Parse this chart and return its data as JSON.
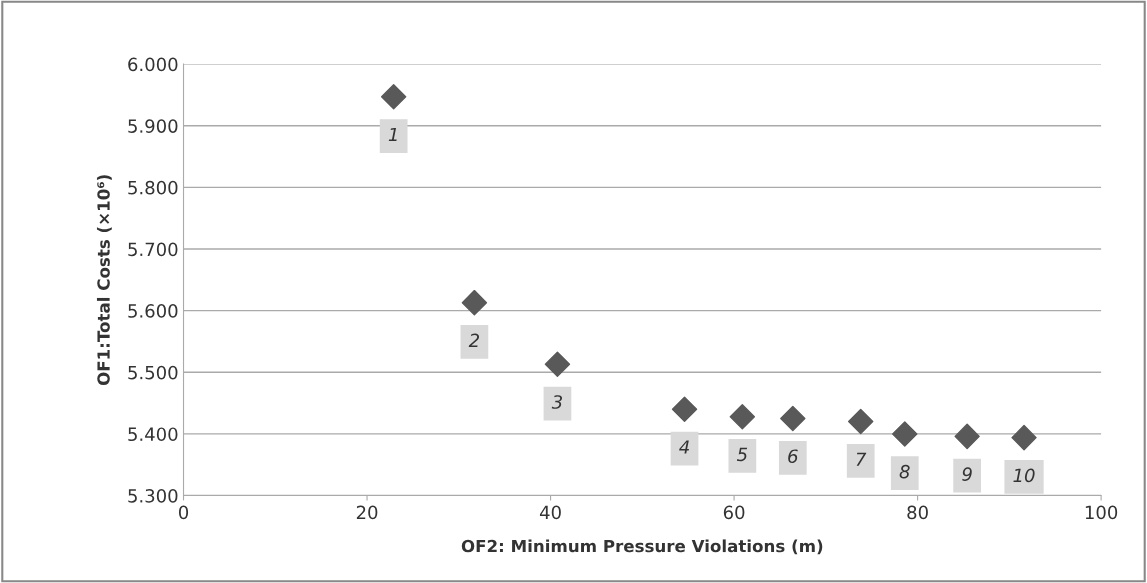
{
  "chart_data": {
    "type": "scatter",
    "xlabel": "OF2: Minimum Pressure Violations (m)",
    "ylabel": "OF1:Total Costs (×10⁶)",
    "x": [
      22.9,
      31.7,
      40.75,
      54.6,
      60.9,
      66.4,
      73.8,
      78.6,
      85.4,
      91.6
    ],
    "series": [
      {
        "color": "#595959",
        "values": [
          5.947,
          5.613,
          5.513,
          5.44,
          5.428,
          5.425,
          5.42,
          5.4,
          5.396,
          5.394
        ]
      }
    ],
    "marker": "diamond",
    "grid": "y",
    "xlim": [
      0,
      100
    ],
    "xticks": [
      0,
      20,
      40,
      60,
      80,
      100
    ],
    "ylim": [
      5.3,
      6.0
    ],
    "yticks": [
      {
        "value": 5.3,
        "label": "5.300"
      },
      {
        "value": 5.4,
        "label": "5.400"
      },
      {
        "value": 5.5,
        "label": "5.500"
      },
      {
        "value": 5.6,
        "label": "5.600"
      },
      {
        "value": 5.7,
        "label": "5.700"
      },
      {
        "value": 5.8,
        "label": "5.800"
      },
      {
        "value": 5.9,
        "label": "5.900"
      },
      {
        "value": 6.0,
        "label": "6.000"
      }
    ],
    "annotations": [
      {
        "text": "1",
        "x": 22.9,
        "y": 5.947
      },
      {
        "text": "2",
        "x": 31.7,
        "y": 5.613
      },
      {
        "text": "3",
        "x": 40.75,
        "y": 5.513
      },
      {
        "text": "4",
        "x": 54.6,
        "y": 5.44
      },
      {
        "text": "5",
        "x": 60.9,
        "y": 5.428
      },
      {
        "text": "6",
        "x": 66.4,
        "y": 5.425
      },
      {
        "text": "7",
        "x": 73.8,
        "y": 5.42
      },
      {
        "text": "8",
        "x": 78.6,
        "y": 5.4
      },
      {
        "text": "9",
        "x": 85.4,
        "y": 5.396
      },
      {
        "text": "10",
        "x": 91.6,
        "y": 5.394
      }
    ]
  }
}
